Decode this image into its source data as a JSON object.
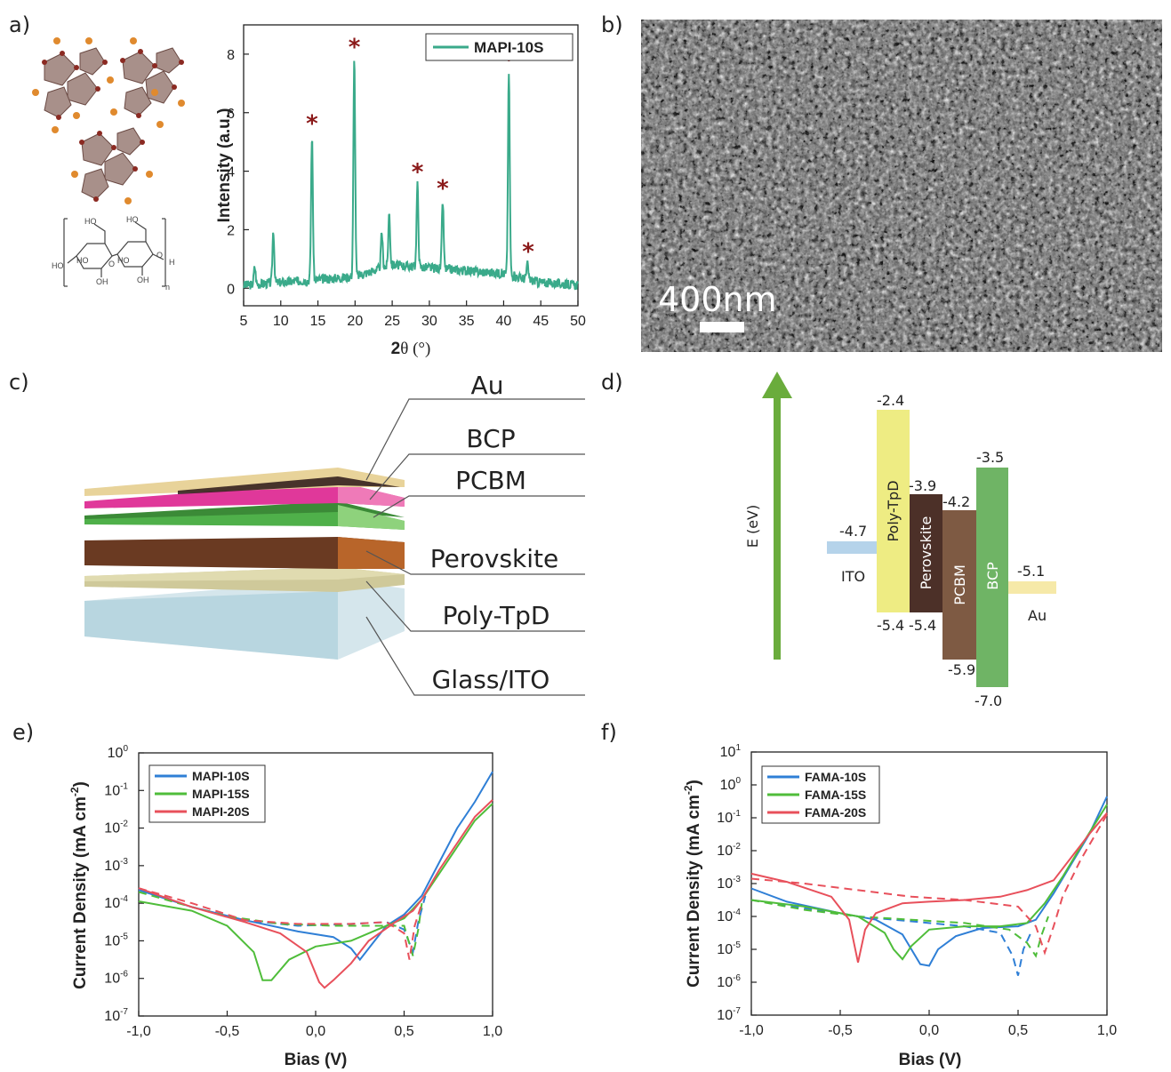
{
  "panel_labels": {
    "a": "a)",
    "b": "b)",
    "c": "c)",
    "d": "d)",
    "e": "e)",
    "f": "f)"
  },
  "panel_b": {
    "scale_bar_label": "400nm"
  },
  "panel_c": {
    "layers": [
      "Au",
      "BCP",
      "PCBM",
      "Perovskite",
      "Poly-TpD",
      "Glass/ITO"
    ],
    "colors": {
      "Au": "#e8d39a",
      "BCP": "#e0389a",
      "PCBM": "#4fb04a",
      "Perovskite": "#6a3a22",
      "Poly-TpD": "#c9c38a",
      "Glass/ITO": "#a9cdd8"
    }
  },
  "panel_d": {
    "axis_label": "E (eV)",
    "materials": [
      {
        "name": "ITO",
        "level": "-4.7",
        "color": "#b5d3ea"
      },
      {
        "name": "Poly-TpD",
        "top": "-2.4",
        "bottom": "-5.4",
        "color": "#eeec83"
      },
      {
        "name": "Perovskite",
        "top": "-3.9",
        "bottom": "-5.4",
        "color": "#4c3028"
      },
      {
        "name": "PCBM",
        "top": "-4.2",
        "bottom": "-5.9",
        "color": "#7e5a43"
      },
      {
        "name": "BCP",
        "top": "-3.5",
        "bottom": "-7.0",
        "color": "#6fb465"
      },
      {
        "name": "Au",
        "level": "-5.1",
        "color": "#f6e9a8"
      }
    ]
  },
  "chart_data": [
    {
      "id": "a",
      "type": "line",
      "xlabel": "2θ (°)",
      "ylabel": "Intensity (a.u.)",
      "xlim": [
        5,
        50
      ],
      "ylim": [
        -0.6,
        9
      ],
      "xticks": [
        "5",
        "10",
        "15",
        "20",
        "25",
        "30",
        "35",
        "40",
        "45",
        "50"
      ],
      "yticks": [
        "0",
        "2",
        "4",
        "6",
        "8"
      ],
      "legend": "top-right",
      "series": [
        {
          "name": "MAPI-10S",
          "color": "#3aaa8a",
          "peaks": [
            [
              6.5,
              0.6
            ],
            [
              9.0,
              1.8
            ],
            [
              14.2,
              4.9
            ],
            [
              19.9,
              7.4
            ],
            [
              23.6,
              1.2
            ],
            [
              24.6,
              1.8
            ],
            [
              28.4,
              2.8
            ],
            [
              31.8,
              2.3
            ],
            [
              40.7,
              6.9
            ],
            [
              43.2,
              0.5
            ]
          ],
          "baseline": [
            [
              5,
              0.1
            ],
            [
              10,
              0.2
            ],
            [
              20,
              0.4
            ],
            [
              25,
              0.8
            ],
            [
              30,
              0.7
            ],
            [
              35,
              0.6
            ],
            [
              40,
              0.5
            ],
            [
              45,
              0.2
            ],
            [
              50,
              0.1
            ]
          ]
        }
      ],
      "markers": {
        "symbol": "*",
        "x": [
          14.2,
          19.9,
          28.4,
          31.8,
          40.7,
          43.3
        ],
        "color": "#8b1a1a"
      }
    },
    {
      "id": "e",
      "type": "line",
      "xlabel": "Bias (V)",
      "ylabel": "Current Density (mA cm",
      "ylabel_sup": "-2",
      "ylabel_end": ")",
      "xlim": [
        -1.0,
        1.0
      ],
      "ylim_log10": [
        -7,
        0
      ],
      "xticks": [
        "-1,0",
        "-0,5",
        "0,0",
        "0,5",
        "1,0"
      ],
      "yticks": [
        "-7",
        "-6",
        "-5",
        "-4",
        "-3",
        "-2",
        "-1",
        "0"
      ],
      "legend": "top-left",
      "series": [
        {
          "name": "MAPI-10S",
          "color": "#2f7fd6",
          "solid": [
            [
              -1.0,
              -3.65
            ],
            [
              -0.7,
              -4.1
            ],
            [
              -0.4,
              -4.45
            ],
            [
              -0.1,
              -4.75
            ],
            [
              0.1,
              -4.9
            ],
            [
              0.2,
              -5.2
            ],
            [
              0.25,
              -5.5
            ],
            [
              0.3,
              -5.2
            ],
            [
              0.4,
              -4.6
            ],
            [
              0.5,
              -4.3
            ],
            [
              0.6,
              -3.8
            ],
            [
              0.7,
              -2.9
            ],
            [
              0.8,
              -2.0
            ],
            [
              0.9,
              -1.3
            ],
            [
              1.0,
              -0.5
            ]
          ],
          "dashed": [
            [
              -1.0,
              -3.6
            ],
            [
              -0.7,
              -4.1
            ],
            [
              -0.4,
              -4.45
            ],
            [
              -0.1,
              -4.6
            ],
            [
              0.2,
              -4.55
            ],
            [
              0.4,
              -4.5
            ],
            [
              0.5,
              -4.7
            ],
            [
              0.55,
              -5.3
            ],
            [
              0.58,
              -4.5
            ],
            [
              0.62,
              -3.8
            ]
          ]
        },
        {
          "name": "MAPI-15S",
          "color": "#4fbd3a",
          "solid": [
            [
              -1.0,
              -3.95
            ],
            [
              -0.7,
              -4.2
            ],
            [
              -0.5,
              -4.6
            ],
            [
              -0.35,
              -5.3
            ],
            [
              -0.3,
              -6.05
            ],
            [
              -0.25,
              -6.05
            ],
            [
              -0.15,
              -5.5
            ],
            [
              0.0,
              -5.15
            ],
            [
              0.2,
              -5.0
            ],
            [
              0.35,
              -4.7
            ],
            [
              0.5,
              -4.4
            ],
            [
              0.6,
              -3.9
            ],
            [
              0.7,
              -3.2
            ],
            [
              0.8,
              -2.5
            ],
            [
              0.9,
              -1.8
            ],
            [
              1.0,
              -1.35
            ]
          ],
          "dashed": [
            [
              -1.0,
              -3.7
            ],
            [
              -0.7,
              -4.1
            ],
            [
              -0.5,
              -4.35
            ],
            [
              -0.2,
              -4.55
            ],
            [
              0.1,
              -4.6
            ],
            [
              0.3,
              -4.6
            ],
            [
              0.5,
              -4.6
            ],
            [
              0.55,
              -5.4
            ],
            [
              0.58,
              -4.7
            ],
            [
              0.6,
              -4.0
            ]
          ]
        },
        {
          "name": "MAPI-20S",
          "color": "#e8505b",
          "solid": [
            [
              -1.0,
              -3.6
            ],
            [
              -0.7,
              -4.1
            ],
            [
              -0.4,
              -4.5
            ],
            [
              -0.2,
              -4.8
            ],
            [
              -0.05,
              -5.3
            ],
            [
              0.02,
              -6.1
            ],
            [
              0.05,
              -6.25
            ],
            [
              0.1,
              -6.05
            ],
            [
              0.2,
              -5.6
            ],
            [
              0.3,
              -5.0
            ],
            [
              0.45,
              -4.5
            ],
            [
              0.55,
              -4.2
            ],
            [
              0.6,
              -3.9
            ],
            [
              0.7,
              -3.1
            ],
            [
              0.8,
              -2.4
            ],
            [
              0.9,
              -1.7
            ],
            [
              1.0,
              -1.25
            ]
          ],
          "dashed": [
            [
              -1.0,
              -3.6
            ],
            [
              -0.7,
              -4.0
            ],
            [
              -0.4,
              -4.45
            ],
            [
              -0.1,
              -4.55
            ],
            [
              0.2,
              -4.55
            ],
            [
              0.4,
              -4.5
            ],
            [
              0.5,
              -4.8
            ],
            [
              0.53,
              -5.5
            ],
            [
              0.56,
              -4.6
            ],
            [
              0.6,
              -4.0
            ]
          ]
        }
      ]
    },
    {
      "id": "f",
      "type": "line",
      "xlabel": "Bias (V)",
      "ylabel": "Current Density (mA cm",
      "ylabel_sup": "-2",
      "ylabel_end": ")",
      "xlim": [
        -1.0,
        1.0
      ],
      "ylim_log10": [
        -7,
        1
      ],
      "xticks": [
        "-1,0",
        "-0,5",
        "0,0",
        "0,5",
        "1,0"
      ],
      "yticks": [
        "-7",
        "-6",
        "-5",
        "-4",
        "-3",
        "-2",
        "-1",
        "0",
        "1"
      ],
      "legend": "top-left",
      "series": [
        {
          "name": "FAMA-10S",
          "color": "#2f7fd6",
          "solid": [
            [
              -1.0,
              -3.15
            ],
            [
              -0.8,
              -3.55
            ],
            [
              -0.5,
              -3.9
            ],
            [
              -0.3,
              -4.1
            ],
            [
              -0.15,
              -4.55
            ],
            [
              -0.05,
              -5.45
            ],
            [
              0.0,
              -5.5
            ],
            [
              0.05,
              -5.0
            ],
            [
              0.15,
              -4.6
            ],
            [
              0.3,
              -4.35
            ],
            [
              0.5,
              -4.3
            ],
            [
              0.6,
              -4.1
            ],
            [
              0.7,
              -3.3
            ],
            [
              0.8,
              -2.4
            ],
            [
              0.9,
              -1.5
            ],
            [
              1.0,
              -0.35
            ]
          ],
          "dashed": [
            [
              -1.0,
              -3.5
            ],
            [
              -0.7,
              -3.75
            ],
            [
              -0.4,
              -4.0
            ],
            [
              -0.1,
              -4.15
            ],
            [
              0.2,
              -4.3
            ],
            [
              0.4,
              -4.5
            ],
            [
              0.47,
              -5.2
            ],
            [
              0.5,
              -5.8
            ],
            [
              0.53,
              -5.0
            ],
            [
              0.58,
              -4.4
            ]
          ]
        },
        {
          "name": "FAMA-15S",
          "color": "#4fbd3a",
          "solid": [
            [
              -1.0,
              -3.5
            ],
            [
              -0.7,
              -3.7
            ],
            [
              -0.4,
              -4.0
            ],
            [
              -0.25,
              -4.5
            ],
            [
              -0.2,
              -5.0
            ],
            [
              -0.15,
              -5.3
            ],
            [
              -0.1,
              -4.9
            ],
            [
              0.0,
              -4.4
            ],
            [
              0.2,
              -4.3
            ],
            [
              0.4,
              -4.3
            ],
            [
              0.55,
              -4.2
            ],
            [
              0.65,
              -3.6
            ],
            [
              0.75,
              -2.8
            ],
            [
              0.85,
              -1.9
            ],
            [
              1.0,
              -0.6
            ]
          ],
          "dashed": [
            [
              -1.0,
              -3.5
            ],
            [
              -0.7,
              -3.8
            ],
            [
              -0.4,
              -4.0
            ],
            [
              -0.1,
              -4.1
            ],
            [
              0.2,
              -4.2
            ],
            [
              0.45,
              -4.4
            ],
            [
              0.55,
              -4.8
            ],
            [
              0.6,
              -5.2
            ],
            [
              0.63,
              -4.6
            ],
            [
              0.67,
              -4.0
            ]
          ]
        },
        {
          "name": "FAMA-20S",
          "color": "#e8505b",
          "solid": [
            [
              -1.0,
              -2.7
            ],
            [
              -0.8,
              -2.95
            ],
            [
              -0.55,
              -3.4
            ],
            [
              -0.45,
              -4.1
            ],
            [
              -0.4,
              -5.4
            ],
            [
              -0.36,
              -4.4
            ],
            [
              -0.3,
              -3.9
            ],
            [
              -0.15,
              -3.6
            ],
            [
              0.0,
              -3.55
            ],
            [
              0.2,
              -3.5
            ],
            [
              0.4,
              -3.4
            ],
            [
              0.55,
              -3.2
            ],
            [
              0.7,
              -2.9
            ],
            [
              0.8,
              -2.2
            ],
            [
              0.9,
              -1.5
            ],
            [
              1.0,
              -0.85
            ]
          ],
          "dashed": [
            [
              -1.0,
              -2.85
            ],
            [
              -0.7,
              -3.0
            ],
            [
              -0.4,
              -3.2
            ],
            [
              -0.1,
              -3.4
            ],
            [
              0.2,
              -3.5
            ],
            [
              0.5,
              -3.7
            ],
            [
              0.6,
              -4.3
            ],
            [
              0.65,
              -5.1
            ],
            [
              0.7,
              -4.3
            ],
            [
              0.75,
              -3.4
            ],
            [
              0.85,
              -2.3
            ],
            [
              1.0,
              -0.9
            ]
          ]
        }
      ]
    }
  ]
}
